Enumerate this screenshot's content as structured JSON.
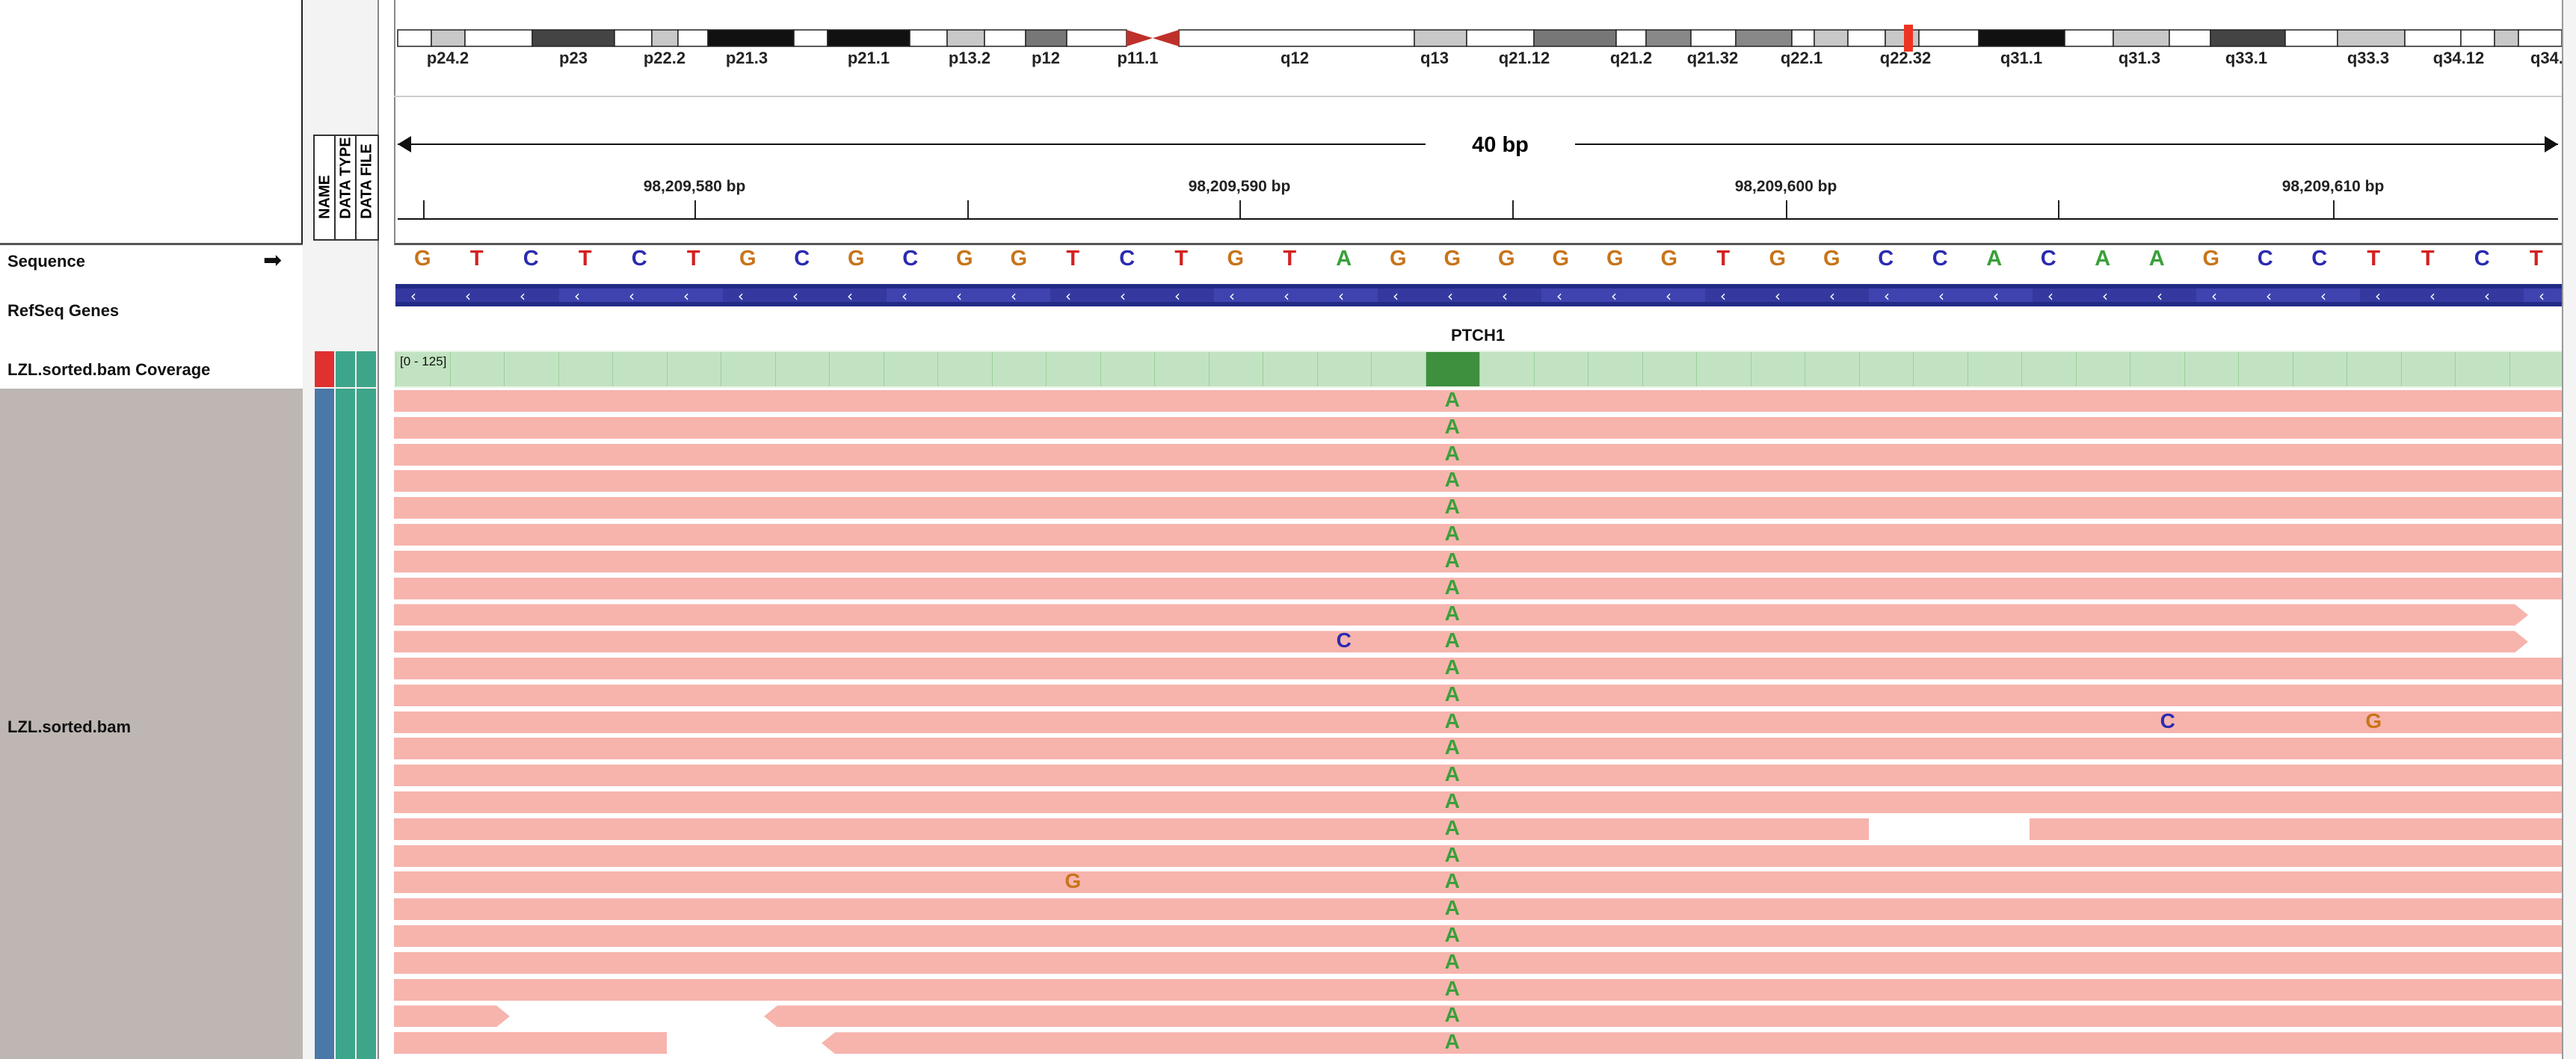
{
  "ideogram": {
    "bands": [
      "p24.2",
      "p23",
      "p22.2",
      "p21.3",
      "p21.1",
      "p13.2",
      "p12",
      "p11.1",
      "q12",
      "q13",
      "q21.12",
      "q21.2",
      "q21.32",
      "q22.1",
      "q22.32",
      "q31.1",
      "q31.3",
      "q33.1",
      "q33.3",
      "q34.12",
      "q34."
    ]
  },
  "ruler": {
    "span_label": "40 bp",
    "ticks": [
      "98,209,580 bp",
      "98,209,590 bp",
      "98,209,600 bp",
      "98,209,610 bp"
    ]
  },
  "attribute_headers": [
    "NAME",
    "DATA TYPE",
    "DATA FILE"
  ],
  "tracks": {
    "sequence": "Sequence",
    "refseq": "RefSeq Genes",
    "coverage": "LZL.sorted.bam Coverage",
    "alignments": "LZL.sorted.bam"
  },
  "sequence": [
    "G",
    "T",
    "C",
    "T",
    "C",
    "T",
    "G",
    "C",
    "G",
    "C",
    "G",
    "G",
    "T",
    "C",
    "T",
    "G",
    "T",
    "A",
    "G",
    "G",
    "G",
    "G",
    "G",
    "G",
    "T",
    "G",
    "G",
    "C",
    "C",
    "A",
    "C",
    "A",
    "A",
    "G",
    "C",
    "C",
    "T",
    "T",
    "C",
    "T"
  ],
  "gene_name": "PTCH1",
  "coverage_range": "[0 - 125]",
  "base_colors": {
    "A": "#3aa03a",
    "C": "#2b2bb0",
    "G": "#c8741a",
    "T": "#d42020"
  },
  "variant_base": "A",
  "mismatches": [
    {
      "row": 9,
      "base": "C"
    },
    {
      "row": 12,
      "base": "C"
    },
    {
      "row": 12,
      "base": "G"
    },
    {
      "row": 18,
      "base": "G"
    }
  ]
}
